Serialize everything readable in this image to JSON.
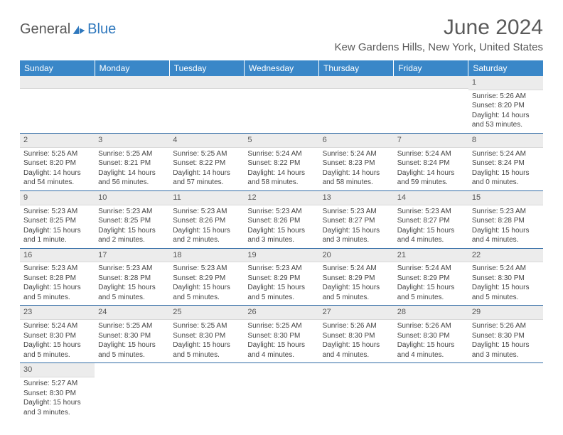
{
  "logo": {
    "part1": "General",
    "part2": "Blue"
  },
  "title": "June 2024",
  "subtitle": "Kew Gardens Hills, New York, United States",
  "colors": {
    "header_bg": "#3a87c8",
    "header_text": "#ffffff",
    "rule": "#2f6aa5",
    "daynum_bg": "#ececec",
    "text": "#444444",
    "title_text": "#5a5a5a",
    "logo_blue": "#2f78bd"
  },
  "day_headers": [
    "Sunday",
    "Monday",
    "Tuesday",
    "Wednesday",
    "Thursday",
    "Friday",
    "Saturday"
  ],
  "weeks": [
    [
      null,
      null,
      null,
      null,
      null,
      null,
      {
        "n": "1",
        "sr": "Sunrise: 5:26 AM",
        "ss": "Sunset: 8:20 PM",
        "dl": "Daylight: 14 hours and 53 minutes."
      }
    ],
    [
      {
        "n": "2",
        "sr": "Sunrise: 5:25 AM",
        "ss": "Sunset: 8:20 PM",
        "dl": "Daylight: 14 hours and 54 minutes."
      },
      {
        "n": "3",
        "sr": "Sunrise: 5:25 AM",
        "ss": "Sunset: 8:21 PM",
        "dl": "Daylight: 14 hours and 56 minutes."
      },
      {
        "n": "4",
        "sr": "Sunrise: 5:25 AM",
        "ss": "Sunset: 8:22 PM",
        "dl": "Daylight: 14 hours and 57 minutes."
      },
      {
        "n": "5",
        "sr": "Sunrise: 5:24 AM",
        "ss": "Sunset: 8:22 PM",
        "dl": "Daylight: 14 hours and 58 minutes."
      },
      {
        "n": "6",
        "sr": "Sunrise: 5:24 AM",
        "ss": "Sunset: 8:23 PM",
        "dl": "Daylight: 14 hours and 58 minutes."
      },
      {
        "n": "7",
        "sr": "Sunrise: 5:24 AM",
        "ss": "Sunset: 8:24 PM",
        "dl": "Daylight: 14 hours and 59 minutes."
      },
      {
        "n": "8",
        "sr": "Sunrise: 5:24 AM",
        "ss": "Sunset: 8:24 PM",
        "dl": "Daylight: 15 hours and 0 minutes."
      }
    ],
    [
      {
        "n": "9",
        "sr": "Sunrise: 5:23 AM",
        "ss": "Sunset: 8:25 PM",
        "dl": "Daylight: 15 hours and 1 minute."
      },
      {
        "n": "10",
        "sr": "Sunrise: 5:23 AM",
        "ss": "Sunset: 8:25 PM",
        "dl": "Daylight: 15 hours and 2 minutes."
      },
      {
        "n": "11",
        "sr": "Sunrise: 5:23 AM",
        "ss": "Sunset: 8:26 PM",
        "dl": "Daylight: 15 hours and 2 minutes."
      },
      {
        "n": "12",
        "sr": "Sunrise: 5:23 AM",
        "ss": "Sunset: 8:26 PM",
        "dl": "Daylight: 15 hours and 3 minutes."
      },
      {
        "n": "13",
        "sr": "Sunrise: 5:23 AM",
        "ss": "Sunset: 8:27 PM",
        "dl": "Daylight: 15 hours and 3 minutes."
      },
      {
        "n": "14",
        "sr": "Sunrise: 5:23 AM",
        "ss": "Sunset: 8:27 PM",
        "dl": "Daylight: 15 hours and 4 minutes."
      },
      {
        "n": "15",
        "sr": "Sunrise: 5:23 AM",
        "ss": "Sunset: 8:28 PM",
        "dl": "Daylight: 15 hours and 4 minutes."
      }
    ],
    [
      {
        "n": "16",
        "sr": "Sunrise: 5:23 AM",
        "ss": "Sunset: 8:28 PM",
        "dl": "Daylight: 15 hours and 5 minutes."
      },
      {
        "n": "17",
        "sr": "Sunrise: 5:23 AM",
        "ss": "Sunset: 8:28 PM",
        "dl": "Daylight: 15 hours and 5 minutes."
      },
      {
        "n": "18",
        "sr": "Sunrise: 5:23 AM",
        "ss": "Sunset: 8:29 PM",
        "dl": "Daylight: 15 hours and 5 minutes."
      },
      {
        "n": "19",
        "sr": "Sunrise: 5:23 AM",
        "ss": "Sunset: 8:29 PM",
        "dl": "Daylight: 15 hours and 5 minutes."
      },
      {
        "n": "20",
        "sr": "Sunrise: 5:24 AM",
        "ss": "Sunset: 8:29 PM",
        "dl": "Daylight: 15 hours and 5 minutes."
      },
      {
        "n": "21",
        "sr": "Sunrise: 5:24 AM",
        "ss": "Sunset: 8:29 PM",
        "dl": "Daylight: 15 hours and 5 minutes."
      },
      {
        "n": "22",
        "sr": "Sunrise: 5:24 AM",
        "ss": "Sunset: 8:30 PM",
        "dl": "Daylight: 15 hours and 5 minutes."
      }
    ],
    [
      {
        "n": "23",
        "sr": "Sunrise: 5:24 AM",
        "ss": "Sunset: 8:30 PM",
        "dl": "Daylight: 15 hours and 5 minutes."
      },
      {
        "n": "24",
        "sr": "Sunrise: 5:25 AM",
        "ss": "Sunset: 8:30 PM",
        "dl": "Daylight: 15 hours and 5 minutes."
      },
      {
        "n": "25",
        "sr": "Sunrise: 5:25 AM",
        "ss": "Sunset: 8:30 PM",
        "dl": "Daylight: 15 hours and 5 minutes."
      },
      {
        "n": "26",
        "sr": "Sunrise: 5:25 AM",
        "ss": "Sunset: 8:30 PM",
        "dl": "Daylight: 15 hours and 4 minutes."
      },
      {
        "n": "27",
        "sr": "Sunrise: 5:26 AM",
        "ss": "Sunset: 8:30 PM",
        "dl": "Daylight: 15 hours and 4 minutes."
      },
      {
        "n": "28",
        "sr": "Sunrise: 5:26 AM",
        "ss": "Sunset: 8:30 PM",
        "dl": "Daylight: 15 hours and 4 minutes."
      },
      {
        "n": "29",
        "sr": "Sunrise: 5:26 AM",
        "ss": "Sunset: 8:30 PM",
        "dl": "Daylight: 15 hours and 3 minutes."
      }
    ],
    [
      {
        "n": "30",
        "sr": "Sunrise: 5:27 AM",
        "ss": "Sunset: 8:30 PM",
        "dl": "Daylight: 15 hours and 3 minutes."
      },
      null,
      null,
      null,
      null,
      null,
      null
    ]
  ]
}
